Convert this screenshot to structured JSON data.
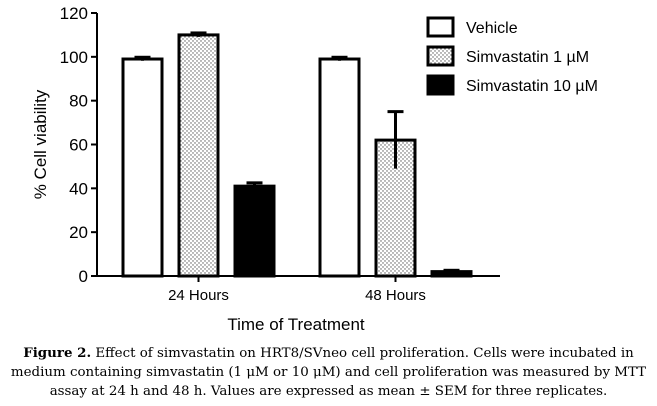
{
  "chart_data": {
    "type": "bar",
    "categories": [
      "24 Hours",
      "48 Hours"
    ],
    "series": [
      {
        "name": "Vehicle",
        "pattern": "white",
        "values": [
          99,
          99
        ],
        "errors": [
          0.8,
          0.8
        ]
      },
      {
        "name": "Simvastatin 1 µM",
        "pattern": "dotted",
        "values": [
          110,
          62
        ],
        "errors": [
          0.9,
          13
        ]
      },
      {
        "name": "Simvastatin 10 µM",
        "pattern": "black",
        "values": [
          41,
          2
        ],
        "errors": [
          1.5,
          0.6
        ]
      }
    ],
    "xlabel": "Time of Treatment",
    "ylabel": "% Cell viability",
    "ylim": [
      0,
      120
    ],
    "yticks": [
      "0",
      "20",
      "40",
      "60",
      "80",
      "100",
      "120"
    ],
    "legend_position": "top-right",
    "grid": false
  },
  "caption": {
    "label": "Figure 2.",
    "text": "Effect of simvastatin on HRT8/SVneo cell proliferation. Cells were incubated in medium containing simvastatin (1 μM or 10 μM) and cell proliferation was measured by MTT assay at 24 h and 48 h. Values are expressed as mean ± SEM for three replicates."
  }
}
